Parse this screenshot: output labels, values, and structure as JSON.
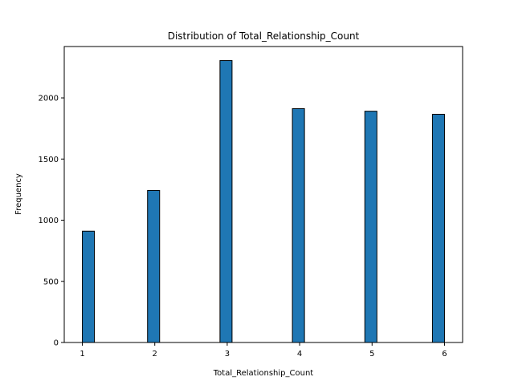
{
  "chart_data": {
    "type": "bar",
    "title": "Distribution of Total_Relationship_Count",
    "xlabel": "Total_Relationship_Count",
    "ylabel": "Frequency",
    "xlim": [
      0.75,
      6.25
    ],
    "ylim": [
      0,
      2420
    ],
    "x_ticks": [
      1,
      2,
      3,
      4,
      5,
      6
    ],
    "y_ticks": [
      0,
      500,
      1000,
      1500,
      2000
    ],
    "bin_width": 0.1667,
    "bar_color": "#1f77b4",
    "edge_color": "#000000",
    "grid": false,
    "legend": "none",
    "bars": [
      {
        "x_start": 1.0,
        "x_end": 1.1667,
        "value": 910
      },
      {
        "x_start": 1.9,
        "x_end": 2.0667,
        "value": 1243
      },
      {
        "x_start": 2.9,
        "x_end": 3.0667,
        "value": 2305
      },
      {
        "x_start": 3.9,
        "x_end": 4.0667,
        "value": 1912
      },
      {
        "x_start": 4.9,
        "x_end": 5.0667,
        "value": 1891
      },
      {
        "x_start": 5.8333,
        "x_end": 6.0,
        "value": 1866
      }
    ]
  }
}
